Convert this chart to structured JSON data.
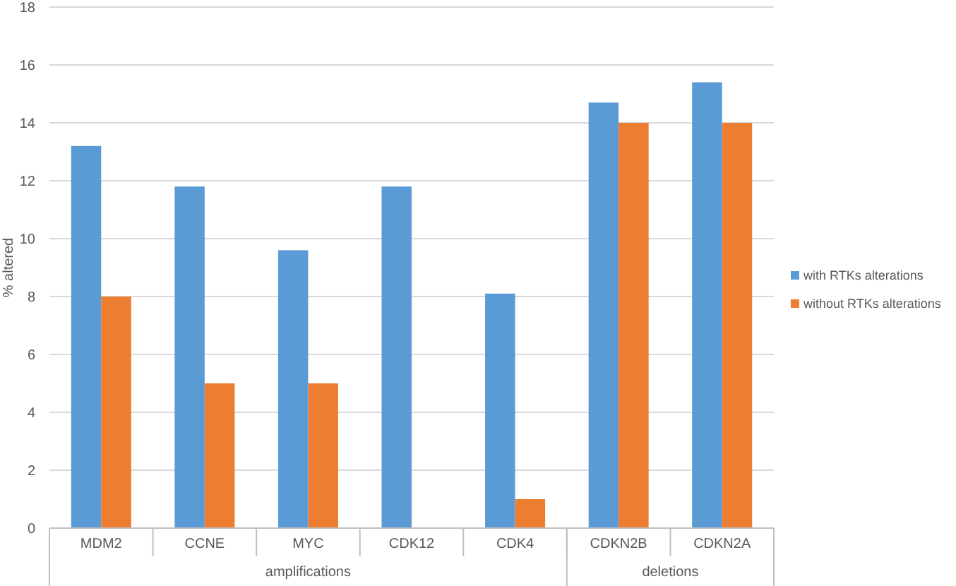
{
  "chart_data": {
    "type": "bar",
    "ylabel": "% altered",
    "categories": [
      "MDM2",
      "CCNE",
      "MYC",
      "CDK12",
      "CDK4",
      "CDKN2B",
      "CDKN2A"
    ],
    "series": [
      {
        "name": "with RTKs alterations",
        "color": "#5b9bd5",
        "values": [
          13.2,
          11.8,
          9.6,
          11.8,
          8.1,
          14.7,
          15.4
        ]
      },
      {
        "name": "without RTKs alterations",
        "color": "#ed7d31",
        "values": [
          8,
          5,
          5,
          0,
          1,
          14,
          14
        ]
      }
    ],
    "ylim": [
      0,
      18
    ],
    "yticks": [
      0,
      2,
      4,
      6,
      8,
      10,
      12,
      14,
      16,
      18
    ],
    "grid": "y",
    "legend": "right",
    "annotations": [
      "amplifications",
      "deletions"
    ]
  }
}
